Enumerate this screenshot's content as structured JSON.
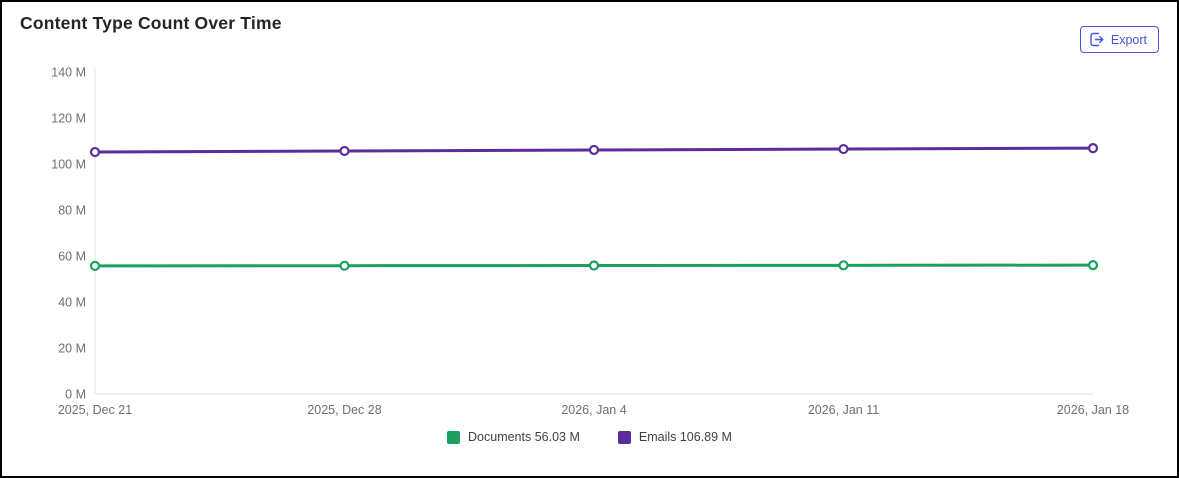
{
  "header": {
    "title": "Content Type Count Over Time",
    "export_button": {
      "label": "Export",
      "icon": "export-icon",
      "color": "#4353e0"
    }
  },
  "chart_data": {
    "type": "line",
    "title": "Content Type Count Over Time",
    "categories": [
      "2025, Dec 21",
      "2025, Dec 28",
      "2026, Jan 4",
      "2026, Jan 11",
      "2026, Jan 18"
    ],
    "series": [
      {
        "name": "Documents",
        "color": "#1ba05f",
        "values": [
          55.7,
          55.78,
          55.86,
          55.95,
          56.03
        ],
        "latest_value_label": "56.03 M",
        "legend_label": "Documents 56.03 M"
      },
      {
        "name": "Emails",
        "color": "#5b2d9c",
        "values": [
          105.2,
          105.65,
          106.1,
          106.5,
          106.89
        ],
        "latest_value_label": "106.89 M",
        "legend_label": "Emails 106.89 M"
      }
    ],
    "xlabel": "",
    "ylabel": "",
    "ylim": [
      0,
      140
    ],
    "ytick_values": [
      0,
      20,
      40,
      60,
      80,
      100,
      120,
      140
    ],
    "ytick_labels": [
      "0 M",
      "20 M",
      "40 M",
      "60 M",
      "80 M",
      "100 M",
      "120 M",
      "140 M"
    ],
    "grid": false,
    "legend_position": "bottom",
    "marker": "open-circle",
    "axis_color": "#e1e1e1",
    "tick_label_color": "#6f6f6f"
  }
}
